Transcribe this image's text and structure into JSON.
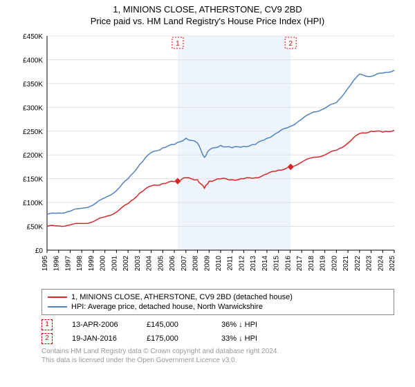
{
  "title_line1": "1, MINIONS CLOSE, ATHERSTONE, CV9 2BD",
  "title_line2": "Price paid vs. HM Land Registry's House Price Index (HPI)",
  "chart": {
    "type": "line",
    "background_color": "#ffffff",
    "band_color": "#eef4fb",
    "grid_color": "#e0e0e0",
    "axis_color": "#000000",
    "label_fontsize": 11,
    "tick_fontsize": 10,
    "y_axis": {
      "min": 0,
      "max": 450000,
      "tick_step": 50000,
      "prefix": "£",
      "tick_labels": [
        "£0",
        "£50K",
        "£100K",
        "£150K",
        "£200K",
        "£250K",
        "£300K",
        "£350K",
        "£400K",
        "£450K"
      ]
    },
    "x_axis": {
      "min": 1995,
      "max": 2025,
      "tick_step": 1,
      "tick_labels": [
        "1995",
        "1996",
        "1997",
        "1998",
        "1999",
        "2000",
        "2001",
        "2002",
        "2003",
        "2004",
        "2005",
        "2006",
        "2007",
        "2008",
        "2009",
        "2010",
        "2011",
        "2012",
        "2013",
        "2014",
        "2015",
        "2016",
        "2017",
        "2018",
        "2019",
        "2020",
        "2021",
        "2022",
        "2023",
        "2024",
        "2025"
      ]
    },
    "band_start": 2006.29,
    "band_end": 2016.05,
    "series": [
      {
        "name": "property",
        "label": "1, MINIONS CLOSE, ATHERSTONE, CV9 2BD (detached house)",
        "color": "#d62728",
        "line_width": 1.5,
        "data": [
          [
            1995,
            50000
          ],
          [
            1996,
            51000
          ],
          [
            1997,
            53000
          ],
          [
            1998,
            56000
          ],
          [
            1999,
            60000
          ],
          [
            2000,
            70000
          ],
          [
            2001,
            80000
          ],
          [
            2002,
            98000
          ],
          [
            2003,
            120000
          ],
          [
            2004,
            135000
          ],
          [
            2005,
            140000
          ],
          [
            2006,
            144000
          ],
          [
            2006.29,
            145000
          ],
          [
            2007,
            152000
          ],
          [
            2008,
            148000
          ],
          [
            2008.6,
            130000
          ],
          [
            2009,
            145000
          ],
          [
            2010,
            150000
          ],
          [
            2011,
            148000
          ],
          [
            2012,
            150000
          ],
          [
            2013,
            152000
          ],
          [
            2014,
            160000
          ],
          [
            2015,
            168000
          ],
          [
            2016,
            175000
          ],
          [
            2016.05,
            175000
          ],
          [
            2017,
            185000
          ],
          [
            2018,
            195000
          ],
          [
            2019,
            200000
          ],
          [
            2020,
            210000
          ],
          [
            2021,
            225000
          ],
          [
            2022,
            245000
          ],
          [
            2023,
            250000
          ],
          [
            2024,
            248000
          ],
          [
            2025,
            252000
          ]
        ]
      },
      {
        "name": "hpi",
        "label": "HPI: Average price, detached house, North Warwickshire",
        "color": "#4f81bd",
        "line_width": 1.5,
        "data": [
          [
            1995,
            75000
          ],
          [
            1996,
            78000
          ],
          [
            1997,
            82000
          ],
          [
            1998,
            88000
          ],
          [
            1999,
            95000
          ],
          [
            2000,
            110000
          ],
          [
            2001,
            125000
          ],
          [
            2002,
            150000
          ],
          [
            2003,
            180000
          ],
          [
            2004,
            205000
          ],
          [
            2005,
            215000
          ],
          [
            2006,
            222000
          ],
          [
            2007,
            235000
          ],
          [
            2008,
            225000
          ],
          [
            2008.6,
            195000
          ],
          [
            2009,
            210000
          ],
          [
            2010,
            220000
          ],
          [
            2011,
            215000
          ],
          [
            2012,
            218000
          ],
          [
            2013,
            222000
          ],
          [
            2014,
            235000
          ],
          [
            2015,
            248000
          ],
          [
            2016,
            260000
          ],
          [
            2017,
            275000
          ],
          [
            2018,
            290000
          ],
          [
            2019,
            298000
          ],
          [
            2020,
            310000
          ],
          [
            2021,
            340000
          ],
          [
            2022,
            370000
          ],
          [
            2023,
            365000
          ],
          [
            2024,
            372000
          ],
          [
            2025,
            378000
          ]
        ]
      }
    ],
    "markers": [
      {
        "id": "1",
        "x": 2006.29,
        "y": 145000,
        "color": "#d00"
      },
      {
        "id": "2",
        "x": 2016.05,
        "y": 175000,
        "color": "#d00"
      }
    ]
  },
  "legend": {
    "items": [
      {
        "color": "#d62728",
        "label": "1, MINIONS CLOSE, ATHERSTONE, CV9 2BD (detached house)"
      },
      {
        "color": "#4f81bd",
        "label": "HPI: Average price, detached house, North Warwickshire"
      }
    ]
  },
  "transactions": [
    {
      "id": "1",
      "date": "13-APR-2006",
      "price": "£145,000",
      "delta": "36% ↓ HPI"
    },
    {
      "id": "2",
      "date": "19-JAN-2016",
      "price": "£175,000",
      "delta": "33% ↓ HPI"
    }
  ],
  "footer_line1": "Contains HM Land Registry data © Crown copyright and database right 2024.",
  "footer_line2": "This data is licensed under the Open Government Licence v3.0."
}
